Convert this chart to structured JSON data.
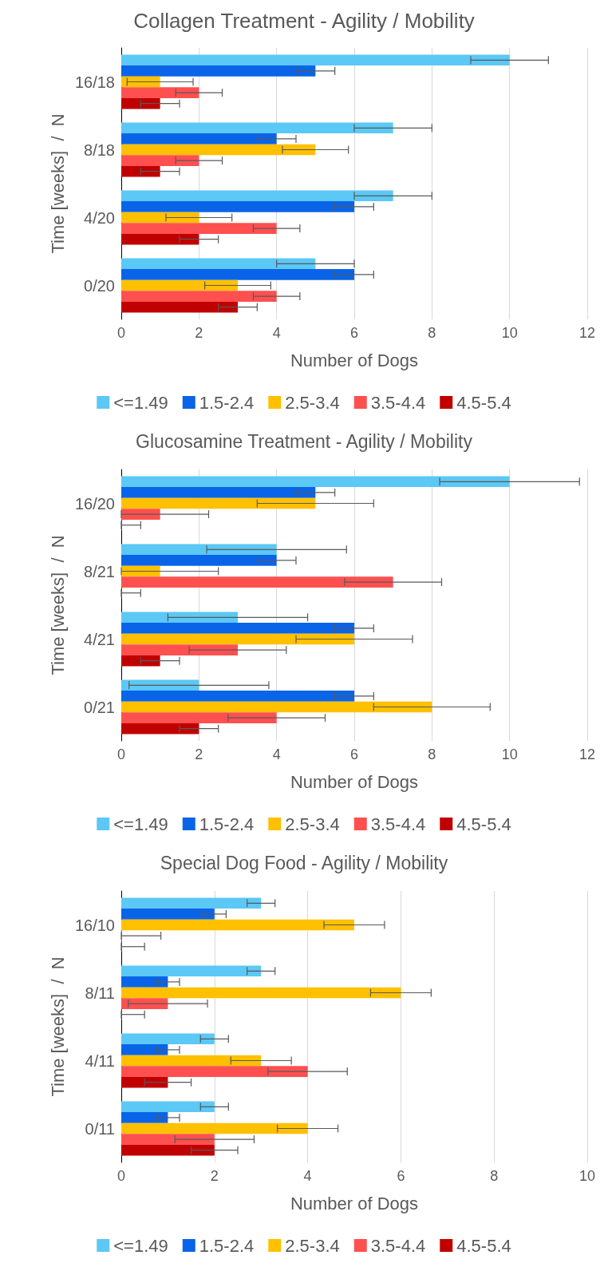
{
  "chart_data": [
    {
      "type": "bar",
      "orientation": "horizontal",
      "title": "Collagen Treatment - Agility / Mobility",
      "xlabel": "Number of Dogs",
      "ylabel": "Time [weeks]  /  N",
      "categories": [
        "16/18",
        "8/18",
        "4/20",
        "0/20"
      ],
      "xlim": [
        0,
        12
      ],
      "xticks": [
        0,
        2,
        4,
        6,
        8,
        10,
        12
      ],
      "grid": "x",
      "legend": "bottom",
      "series": [
        {
          "name": "<=1.49",
          "color": "#5bc8f5",
          "values": [
            10,
            7,
            7,
            5
          ],
          "errors": [
            1,
            1,
            1,
            1
          ]
        },
        {
          "name": "1.5-2.4",
          "color": "#0a64e8",
          "values": [
            5,
            4,
            6,
            6
          ],
          "errors": [
            0.5,
            0.5,
            0.5,
            0.5
          ]
        },
        {
          "name": "2.5-3.4",
          "color": "#ffc000",
          "values": [
            1,
            5,
            2,
            3
          ],
          "errors": [
            0.85,
            0.85,
            0.85,
            0.85
          ]
        },
        {
          "name": "3.5-4.4",
          "color": "#ff5050",
          "values": [
            2,
            2,
            4,
            4
          ],
          "errors": [
            0.6,
            0.6,
            0.6,
            0.6
          ]
        },
        {
          "name": "4.5-5.4",
          "color": "#c00000",
          "values": [
            1,
            1,
            2,
            3
          ],
          "errors": [
            0.5,
            0.5,
            0.5,
            0.5
          ]
        }
      ]
    },
    {
      "type": "bar",
      "orientation": "horizontal",
      "title": "Glucosamine Treatment - Agility / Mobility",
      "xlabel": "Number of Dogs",
      "ylabel": "Time [weeks]  /  N",
      "categories": [
        "16/20",
        "8/21",
        "4/21",
        "0/21"
      ],
      "xlim": [
        0,
        12
      ],
      "xticks": [
        0,
        2,
        4,
        6,
        8,
        10,
        12
      ],
      "grid": "x",
      "legend": "bottom",
      "series": [
        {
          "name": "<=1.49",
          "color": "#5bc8f5",
          "values": [
            10,
            4,
            3,
            2
          ],
          "errors": [
            1.8,
            1.8,
            1.8,
            1.8
          ]
        },
        {
          "name": "1.5-2.4",
          "color": "#0a64e8",
          "values": [
            5,
            4,
            6,
            6
          ],
          "errors": [
            0.5,
            0.5,
            0.5,
            0.5
          ]
        },
        {
          "name": "2.5-3.4",
          "color": "#ffc000",
          "values": [
            5,
            1,
            6,
            8
          ],
          "errors": [
            1.5,
            [
              0,
              2.5
            ],
            1.5,
            1.5
          ]
        },
        {
          "name": "3.5-4.4",
          "color": "#ff5050",
          "values": [
            1,
            7,
            3,
            4
          ],
          "errors": [
            [
              0,
              2.25
            ],
            1.25,
            1.25,
            1.25
          ]
        },
        {
          "name": "4.5-5.4",
          "color": "#c00000",
          "values": [
            0,
            0,
            1,
            2
          ],
          "errors": [
            [
              0,
              0.5
            ],
            [
              0,
              0.5
            ],
            0.5,
            0.5
          ]
        }
      ]
    },
    {
      "type": "bar",
      "orientation": "horizontal",
      "title": "Special Dog Food - Agility / Mobility",
      "xlabel": "Number of Dogs",
      "ylabel": "Time [weeks]  /  N",
      "categories": [
        "16/10",
        "8/11",
        "4/11",
        "0/11"
      ],
      "xlim": [
        0,
        10
      ],
      "xticks": [
        0,
        2,
        4,
        6,
        8,
        10
      ],
      "grid": "x",
      "legend": "bottom",
      "series": [
        {
          "name": "<=1.49",
          "color": "#5bc8f5",
          "values": [
            3,
            3,
            2,
            2
          ],
          "errors": [
            0.3,
            0.3,
            0.3,
            0.3
          ]
        },
        {
          "name": "1.5-2.4",
          "color": "#0a64e8",
          "values": [
            2,
            1,
            1,
            1
          ],
          "errors": [
            0.25,
            0.25,
            0.25,
            0.25
          ]
        },
        {
          "name": "2.5-3.4",
          "color": "#ffc000",
          "values": [
            5,
            6,
            3,
            4
          ],
          "errors": [
            0.65,
            0.65,
            0.65,
            0.65
          ]
        },
        {
          "name": "3.5-4.4",
          "color": "#ff5050",
          "values": [
            0,
            1,
            4,
            2
          ],
          "errors": [
            [
              0,
              0.85
            ],
            0.85,
            0.85,
            0.85
          ]
        },
        {
          "name": "4.5-5.4",
          "color": "#c00000",
          "values": [
            0,
            0,
            1,
            2
          ],
          "errors": [
            [
              0,
              0.5
            ],
            [
              0,
              0.5
            ],
            0.5,
            0.5
          ]
        }
      ]
    }
  ]
}
